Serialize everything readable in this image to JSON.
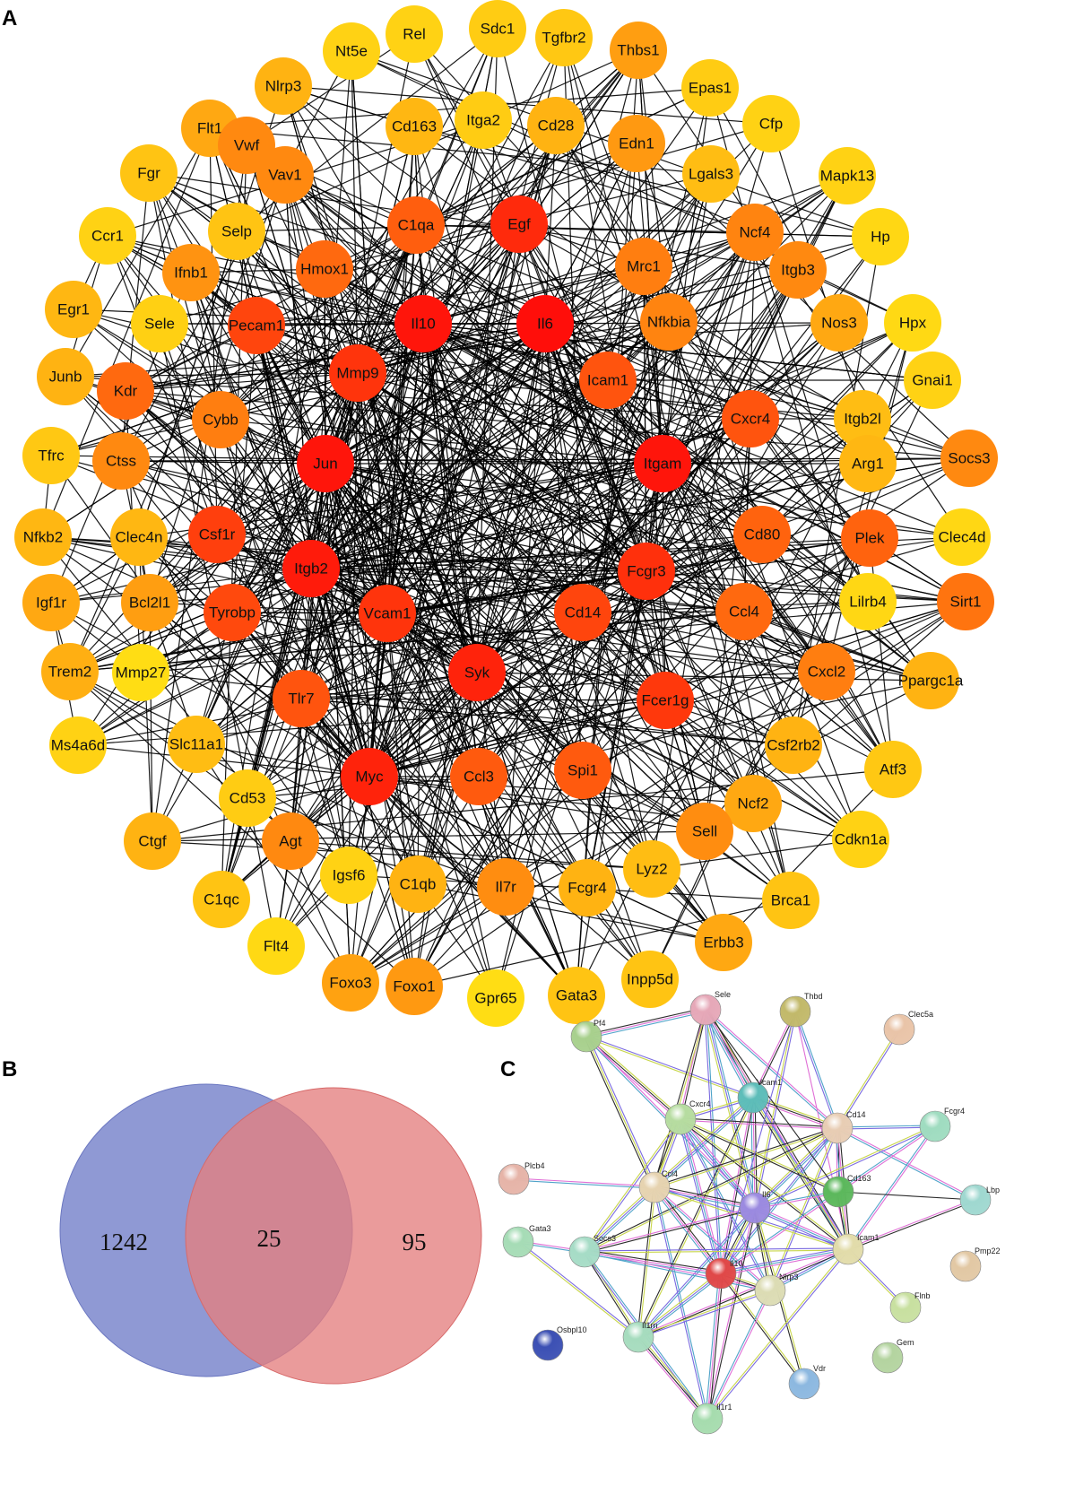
{
  "panels": {
    "a": "A",
    "b": "B",
    "c": "C"
  },
  "network_a": {
    "edge_color": "#000000",
    "color_scale": {
      "high": "#ff0a0a",
      "low": "#ffdd14"
    },
    "nodes": [
      {
        "label": "Rel",
        "score": 0.05
      },
      {
        "label": "Sdc1",
        "score": 0.08
      },
      {
        "label": "Tgfbr2",
        "score": 0.1
      },
      {
        "label": "Thbs1",
        "score": 0.3
      },
      {
        "label": "Nt5e",
        "score": 0.05
      },
      {
        "label": "Epas1",
        "score": 0.08
      },
      {
        "label": "Nlrp3",
        "score": 0.2
      },
      {
        "label": "Cd163",
        "score": 0.18
      },
      {
        "label": "Itga2",
        "score": 0.08
      },
      {
        "label": "Cd28",
        "score": 0.2
      },
      {
        "label": "Edn1",
        "score": 0.32
      },
      {
        "label": "Flt1",
        "score": 0.25
      },
      {
        "label": "Vwf",
        "score": 0.4
      },
      {
        "label": "Cfp",
        "score": 0.05
      },
      {
        "label": "Fgr",
        "score": 0.12
      },
      {
        "label": "Vav1",
        "score": 0.4
      },
      {
        "label": "Lgals3",
        "score": 0.15
      },
      {
        "label": "Mapk13",
        "score": 0.05
      },
      {
        "label": "Ccr1",
        "score": 0.05
      },
      {
        "label": "Selp",
        "score": 0.12
      },
      {
        "label": "C1qa",
        "score": 0.6
      },
      {
        "label": "Egf",
        "score": 0.85
      },
      {
        "label": "Ncf4",
        "score": 0.42
      },
      {
        "label": "Hp",
        "score": 0.03
      },
      {
        "label": "Ifnb1",
        "score": 0.35
      },
      {
        "label": "Hmox1",
        "score": 0.55
      },
      {
        "label": "Mrc1",
        "score": 0.45
      },
      {
        "label": "Itgb3",
        "score": 0.4
      },
      {
        "label": "Egr1",
        "score": 0.18
      },
      {
        "label": "Hpx",
        "score": 0.02
      },
      {
        "label": "Sele",
        "score": 0.06
      },
      {
        "label": "Pecam1",
        "score": 0.72
      },
      {
        "label": "Il10",
        "score": 0.95
      },
      {
        "label": "Il6",
        "score": 0.98
      },
      {
        "label": "Nfkbia",
        "score": 0.42
      },
      {
        "label": "Nos3",
        "score": 0.25
      },
      {
        "label": "Junb",
        "score": 0.2
      },
      {
        "label": "Mmp9",
        "score": 0.8
      },
      {
        "label": "Icam1",
        "score": 0.65
      },
      {
        "label": "Gnai1",
        "score": 0.05
      },
      {
        "label": "Kdr",
        "score": 0.55
      },
      {
        "label": "Cybb",
        "score": 0.45
      },
      {
        "label": "Itgb2l",
        "score": 0.15
      },
      {
        "label": "Cxcr4",
        "score": 0.65
      },
      {
        "label": "Tfrc",
        "score": 0.1
      },
      {
        "label": "Ctss",
        "score": 0.4
      },
      {
        "label": "Jun",
        "score": 0.95
      },
      {
        "label": "Itgam",
        "score": 0.95
      },
      {
        "label": "Arg1",
        "score": 0.18
      },
      {
        "label": "Socs3",
        "score": 0.4
      },
      {
        "label": "Nfkb2",
        "score": 0.18
      },
      {
        "label": "Clec4n",
        "score": 0.18
      },
      {
        "label": "Csf1r",
        "score": 0.75
      },
      {
        "label": "Cd80",
        "score": 0.58
      },
      {
        "label": "Plek",
        "score": 0.58
      },
      {
        "label": "Clec4d",
        "score": 0.03
      },
      {
        "label": "Itgb2",
        "score": 0.92
      },
      {
        "label": "Fcgr3",
        "score": 0.82
      },
      {
        "label": "Igf1r",
        "score": 0.25
      },
      {
        "label": "Bcl2l1",
        "score": 0.3
      },
      {
        "label": "Lilrb4",
        "score": 0.03
      },
      {
        "label": "Sirt1",
        "score": 0.5
      },
      {
        "label": "Tyrobp",
        "score": 0.7
      },
      {
        "label": "Vcam1",
        "score": 0.8
      },
      {
        "label": "Cd14",
        "score": 0.72
      },
      {
        "label": "Ccl4",
        "score": 0.55
      },
      {
        "label": "Trem2",
        "score": 0.22
      },
      {
        "label": "Mmp27",
        "score": 0.0
      },
      {
        "label": "Syk",
        "score": 0.88
      },
      {
        "label": "Cxcl2",
        "score": 0.45
      },
      {
        "label": "Ppargc1a",
        "score": 0.2
      },
      {
        "label": "Tlr7",
        "score": 0.65
      },
      {
        "label": "Fcer1g",
        "score": 0.78
      },
      {
        "label": "Ms4a6d",
        "score": 0.05
      },
      {
        "label": "Slc11a1",
        "score": 0.15
      },
      {
        "label": "Csf2rb2",
        "score": 0.2
      },
      {
        "label": "Myc",
        "score": 0.88
      },
      {
        "label": "Ccl3",
        "score": 0.62
      },
      {
        "label": "Spi1",
        "score": 0.62
      },
      {
        "label": "Atf3",
        "score": 0.1
      },
      {
        "label": "Cd53",
        "score": 0.08
      },
      {
        "label": "Ncf2",
        "score": 0.25
      },
      {
        "label": "Ctgf",
        "score": 0.2
      },
      {
        "label": "Agt",
        "score": 0.4
      },
      {
        "label": "Sell",
        "score": 0.38
      },
      {
        "label": "Cdkn1a",
        "score": 0.05
      },
      {
        "label": "Igsf6",
        "score": 0.05
      },
      {
        "label": "C1qb",
        "score": 0.2
      },
      {
        "label": "Il7r",
        "score": 0.38
      },
      {
        "label": "Fcgr4",
        "score": 0.2
      },
      {
        "label": "Lyz2",
        "score": 0.15
      },
      {
        "label": "C1qc",
        "score": 0.12
      },
      {
        "label": "Brca1",
        "score": 0.12
      },
      {
        "label": "Flt4",
        "score": 0.02
      },
      {
        "label": "Erbb3",
        "score": 0.25
      },
      {
        "label": "Foxo3",
        "score": 0.28
      },
      {
        "label": "Foxo1",
        "score": 0.32
      },
      {
        "label": "Gpr65",
        "score": 0.0
      },
      {
        "label": "Gata3",
        "score": 0.12
      },
      {
        "label": "Inpp5d",
        "score": 0.12
      }
    ]
  },
  "venn_b": {
    "left_only": "1242",
    "overlap": "25",
    "right_only": "95",
    "left_color": "#7b87cc",
    "right_color": "#e47f7f"
  },
  "network_c": {
    "edge_colors": [
      "#c8d64a",
      "#2a2a2a",
      "#e06fd6",
      "#4fa3c9",
      "#7a6ae0"
    ],
    "nodes": [
      {
        "label": "Pf4",
        "color": "#a8d08d"
      },
      {
        "label": "Sele",
        "color": "#e6a8b8"
      },
      {
        "label": "Thbd",
        "color": "#c2b96a"
      },
      {
        "label": "Clec5a",
        "color": "#e9c4a8"
      },
      {
        "label": "Vcam1",
        "color": "#5dbdb9"
      },
      {
        "label": "Cxcr4",
        "color": "#b6dca0"
      },
      {
        "label": "Cd14",
        "color": "#e8cdb4"
      },
      {
        "label": "Fcgr4",
        "color": "#9fdcc0"
      },
      {
        "label": "Plcb4",
        "color": "#e6b4a8"
      },
      {
        "label": "Ccl4",
        "color": "#e6d3b0"
      },
      {
        "label": "Cd163",
        "color": "#5cb85c"
      },
      {
        "label": "Lbp",
        "color": "#9fd8d0"
      },
      {
        "label": "Il6",
        "color": "#9b8ae0"
      },
      {
        "label": "Gata3",
        "color": "#a6dcb6"
      },
      {
        "label": "Socs3",
        "color": "#a6dcc6"
      },
      {
        "label": "Icam1",
        "color": "#e2dcaa"
      },
      {
        "label": "Pmp22",
        "color": "#e2c8a4"
      },
      {
        "label": "Il10",
        "color": "#e04848"
      },
      {
        "label": "Nlrp3",
        "color": "#dcdcb4"
      },
      {
        "label": "Flnb",
        "color": "#c8e0a0"
      },
      {
        "label": "Osbpl10",
        "color": "#3c50b4"
      },
      {
        "label": "Il1rn",
        "color": "#a6dcbe"
      },
      {
        "label": "Gem",
        "color": "#b4d4a0"
      },
      {
        "label": "Vdr",
        "color": "#8cb8e0"
      },
      {
        "label": "Il1r1",
        "color": "#a6dcae"
      }
    ]
  }
}
